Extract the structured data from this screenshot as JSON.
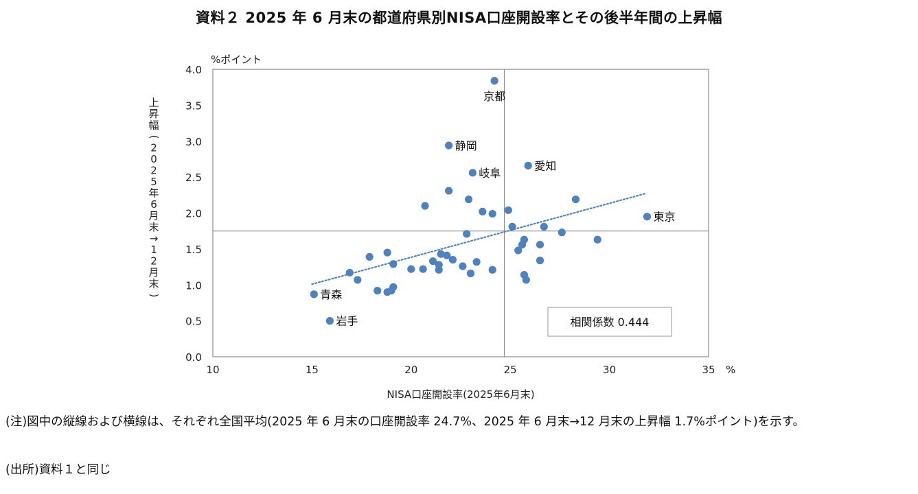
{
  "title": "資料２ 2025 年 6 月末の都道府県別NISA口座開設率とその後半年間の上昇幅",
  "chart_data": {
    "type": "scatter",
    "title": "資料２ 2025 年 6 月末の都道府県別NISA口座開設率とその後半年間の上昇幅",
    "xlabel": "NISA口座開設率(2025年6月末)",
    "x_unit": "%",
    "ylabel": "上昇幅(2025年6月末→12月末)",
    "y_unit": "%ポイント",
    "xlim": [
      10,
      35
    ],
    "ylim": [
      0,
      4
    ],
    "x_ticks": [
      "10",
      "15",
      "20",
      "25",
      "30",
      "35"
    ],
    "y_ticks": [
      "0.0",
      "0.5",
      "1.0",
      "1.5",
      "2.0",
      "2.5",
      "3.0",
      "3.5",
      "4.0"
    ],
    "grid": false,
    "reference_lines": {
      "x_mean": 24.7,
      "y_mean": 1.75
    },
    "trendline": {
      "style": "dotted",
      "from": [
        15.0,
        1.01
      ],
      "to": [
        31.8,
        2.27
      ]
    },
    "correlation_label": "相関係数 0.444",
    "marker_color": "#4f81bd",
    "points": [
      {
        "x": 24.2,
        "y": 3.84,
        "label": "京都"
      },
      {
        "x": 21.9,
        "y": 2.94,
        "label": "静岡"
      },
      {
        "x": 25.9,
        "y": 2.66,
        "label": "愛知"
      },
      {
        "x": 23.1,
        "y": 2.56,
        "label": "岐阜"
      },
      {
        "x": 31.9,
        "y": 1.95,
        "label": "東京"
      },
      {
        "x": 15.1,
        "y": 0.87,
        "label": "青森"
      },
      {
        "x": 15.9,
        "y": 0.5,
        "label": "岩手"
      },
      {
        "x": 21.9,
        "y": 2.31
      },
      {
        "x": 20.7,
        "y": 2.1
      },
      {
        "x": 22.9,
        "y": 2.19
      },
      {
        "x": 23.6,
        "y": 2.02
      },
      {
        "x": 24.1,
        "y": 1.99
      },
      {
        "x": 24.9,
        "y": 2.04
      },
      {
        "x": 28.3,
        "y": 2.19
      },
      {
        "x": 25.1,
        "y": 1.81
      },
      {
        "x": 26.7,
        "y": 1.81
      },
      {
        "x": 27.6,
        "y": 1.73
      },
      {
        "x": 22.8,
        "y": 1.71
      },
      {
        "x": 25.7,
        "y": 1.63
      },
      {
        "x": 29.4,
        "y": 1.63
      },
      {
        "x": 25.6,
        "y": 1.56
      },
      {
        "x": 26.5,
        "y": 1.56
      },
      {
        "x": 25.4,
        "y": 1.48
      },
      {
        "x": 18.8,
        "y": 1.45
      },
      {
        "x": 17.9,
        "y": 1.39
      },
      {
        "x": 21.5,
        "y": 1.43
      },
      {
        "x": 21.8,
        "y": 1.41
      },
      {
        "x": 21.1,
        "y": 1.33
      },
      {
        "x": 22.1,
        "y": 1.35
      },
      {
        "x": 23.3,
        "y": 1.32
      },
      {
        "x": 26.5,
        "y": 1.34
      },
      {
        "x": 19.1,
        "y": 1.29
      },
      {
        "x": 21.4,
        "y": 1.28
      },
      {
        "x": 22.6,
        "y": 1.26
      },
      {
        "x": 20.0,
        "y": 1.22
      },
      {
        "x": 20.6,
        "y": 1.22
      },
      {
        "x": 21.4,
        "y": 1.21
      },
      {
        "x": 24.1,
        "y": 1.21
      },
      {
        "x": 16.9,
        "y": 1.17
      },
      {
        "x": 23.0,
        "y": 1.16
      },
      {
        "x": 25.7,
        "y": 1.14
      },
      {
        "x": 17.3,
        "y": 1.07
      },
      {
        "x": 25.8,
        "y": 1.07
      },
      {
        "x": 19.1,
        "y": 0.97
      },
      {
        "x": 18.3,
        "y": 0.92
      },
      {
        "x": 18.8,
        "y": 0.9
      },
      {
        "x": 19.0,
        "y": 0.92
      }
    ]
  },
  "notes": [
    "(注)図中の縦線および横線は、それぞれ全国平均(2025 年 6 月末の口座開設率 24.7%、2025 年 6 月末→12 月末の上昇幅 1.7%ポイント)を示す。",
    "(出所)資料１と同じ"
  ]
}
